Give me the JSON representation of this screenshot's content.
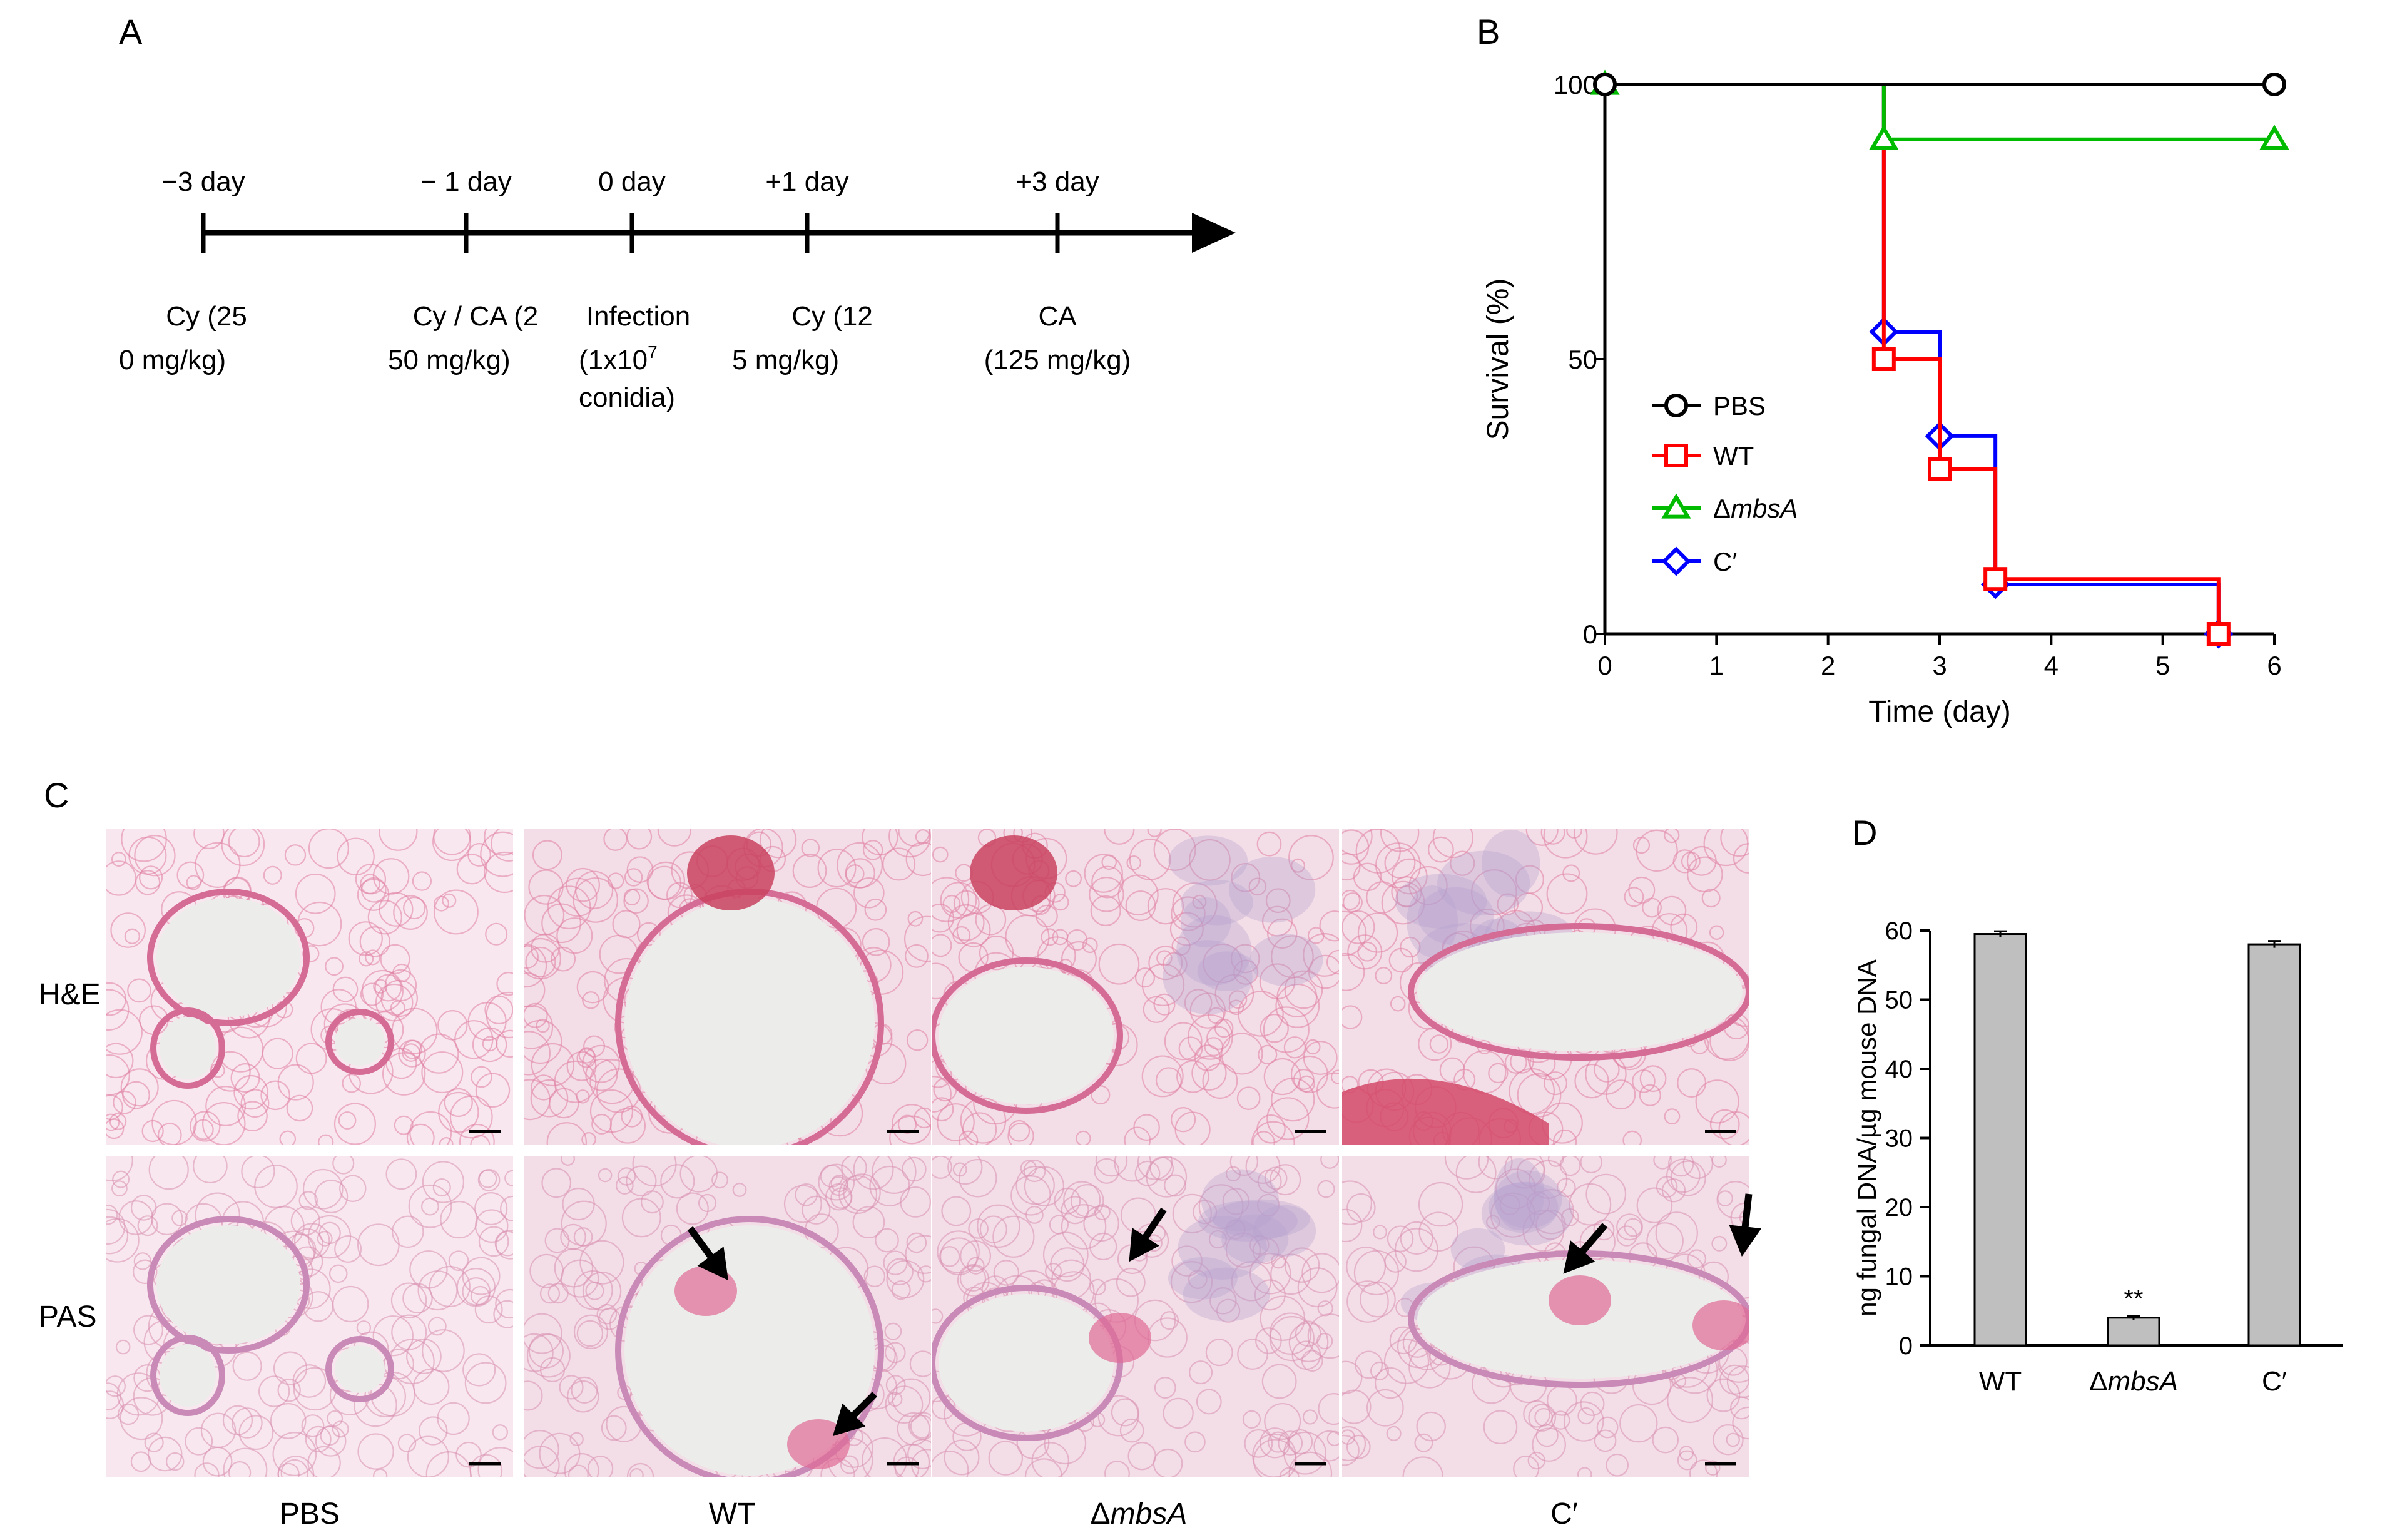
{
  "panelA": {
    "letter": "A",
    "timepoints": [
      {
        "label": "−3 day",
        "day": -3,
        "lines": [
          "Cy (25",
          "0 mg/kg)"
        ]
      },
      {
        "label": "− 1 day",
        "day": -1,
        "lines": [
          "Cy / CA (2",
          "50 mg/kg)"
        ]
      },
      {
        "label": "0 day",
        "day": 0,
        "lines": [
          "Infection",
          "(1x10",
          "conidia)"
        ],
        "sup": "7"
      },
      {
        "label": "+1 day",
        "day": 1,
        "lines": [
          "Cy (12",
          "5 mg/kg)"
        ]
      },
      {
        "label": "+3 day",
        "day": 3,
        "lines": [
          "CA",
          "(125 mg/kg)"
        ]
      }
    ]
  },
  "panelB": {
    "letter": "B",
    "chart_data": {
      "type": "line",
      "subtype": "kaplan-meier-step",
      "xlabel": "Time (day)",
      "ylabel": "Survival (%)",
      "xlim": [
        0,
        6
      ],
      "ylim": [
        0,
        100
      ],
      "xticks": [
        "0",
        "1",
        "2",
        "3",
        "4",
        "5",
        "6"
      ],
      "yticks": [
        "0",
        "50",
        "100"
      ],
      "legend_position": "left",
      "series": [
        {
          "name": "PBS",
          "color": "#000000",
          "marker": "circle",
          "steps": [
            [
              0,
              100
            ],
            [
              6,
              100
            ]
          ],
          "markers": [
            [
              0,
              100
            ],
            [
              6,
              100
            ]
          ]
        },
        {
          "name": "WT",
          "color": "#ff0000",
          "marker": "square",
          "steps": [
            [
              0,
              100
            ],
            [
              2.5,
              100
            ],
            [
              2.5,
              50
            ],
            [
              3,
              50
            ],
            [
              3,
              30
            ],
            [
              3.5,
              30
            ],
            [
              3.5,
              10
            ],
            [
              5.5,
              10
            ],
            [
              5.5,
              0
            ]
          ],
          "markers": [
            [
              2.5,
              50
            ],
            [
              3,
              30
            ],
            [
              3.5,
              10
            ],
            [
              5.5,
              0
            ]
          ]
        },
        {
          "name": "ΔmbsA",
          "name_prefix": "Δ",
          "name_italic": "mbsA",
          "color": "#00bb00",
          "marker": "triangle",
          "steps": [
            [
              0,
              100
            ],
            [
              2.5,
              100
            ],
            [
              2.5,
              90
            ],
            [
              6,
              90
            ]
          ],
          "markers": [
            [
              0,
              100
            ],
            [
              2.5,
              90
            ],
            [
              6,
              90
            ]
          ]
        },
        {
          "name": "C′",
          "color": "#0000ff",
          "marker": "diamond",
          "steps": [
            [
              0,
              100
            ],
            [
              2.5,
              100
            ],
            [
              2.5,
              55
            ],
            [
              3,
              55
            ],
            [
              3,
              36
            ],
            [
              3.5,
              36
            ],
            [
              3.5,
              9
            ],
            [
              5.5,
              9
            ],
            [
              5.5,
              0
            ]
          ],
          "markers": [
            [
              2.5,
              55
            ],
            [
              3,
              36
            ],
            [
              3.5,
              9
            ],
            [
              5.5,
              0
            ]
          ]
        }
      ]
    }
  },
  "panelC": {
    "letter": "C",
    "row_labels": [
      "H&E",
      "PAS"
    ],
    "col_labels": [
      {
        "text": "PBS"
      },
      {
        "text": "WT"
      },
      {
        "prefix": "Δ",
        "italic": "mbsA"
      },
      {
        "text": "C′"
      }
    ],
    "base_colors": {
      "tissue": "#f2c4d2",
      "lumen": "#ececea",
      "stain": "#e06b95",
      "cells": "#b5a1cf"
    }
  },
  "panelD": {
    "letter": "D",
    "chart_data": {
      "type": "bar",
      "categories": [
        "WT",
        "ΔmbsA",
        "C′"
      ],
      "category_italic": [
        null,
        "mbsA",
        null
      ],
      "values": [
        59.5,
        4,
        58
      ],
      "errors": [
        0.4,
        0.3,
        0.5
      ],
      "annotations": [
        "",
        "**",
        ""
      ],
      "ylabel": "ng fungal DNA/µg mouse DNA",
      "ylim": [
        0,
        60
      ],
      "yticks": [
        "0",
        "10",
        "20",
        "30",
        "40",
        "50",
        "60"
      ],
      "bar_color": "#bfbfbf"
    }
  }
}
